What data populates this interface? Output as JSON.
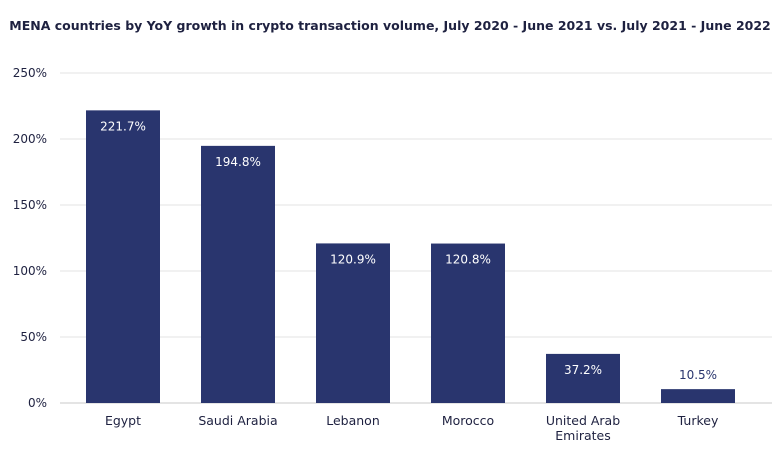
{
  "chart_data": {
    "type": "bar",
    "title": "MENA countries by YoY growth in crypto transaction volume, July 2020 - June 2021 vs. July 2021 - June 2022",
    "xlabel": "",
    "ylabel": "",
    "categories": [
      [
        "Egypt"
      ],
      [
        "Saudi Arabia"
      ],
      [
        "Lebanon"
      ],
      [
        "Morocco"
      ],
      [
        "United Arab",
        "Emirates"
      ],
      [
        "Turkey"
      ]
    ],
    "values": [
      221.7,
      194.8,
      120.9,
      120.8,
      37.2,
      10.5
    ],
    "value_labels": [
      "221.7%",
      "194.8%",
      "120.9%",
      "120.8%",
      "37.2%",
      "10.5%"
    ],
    "ylim": [
      0,
      250
    ],
    "yticks": [
      0,
      50,
      100,
      150,
      200,
      250
    ],
    "ytick_labels": [
      "0%",
      "50%",
      "100%",
      "150%",
      "200%",
      "250%"
    ],
    "grid": true,
    "legend": "none",
    "colors": {
      "bar": "#29356e",
      "grid": "#e3e3e3",
      "axis": "#c8c8c8",
      "text": "#1e2140",
      "label_inside": "#ffffff",
      "label_outside": "#29356e"
    }
  }
}
